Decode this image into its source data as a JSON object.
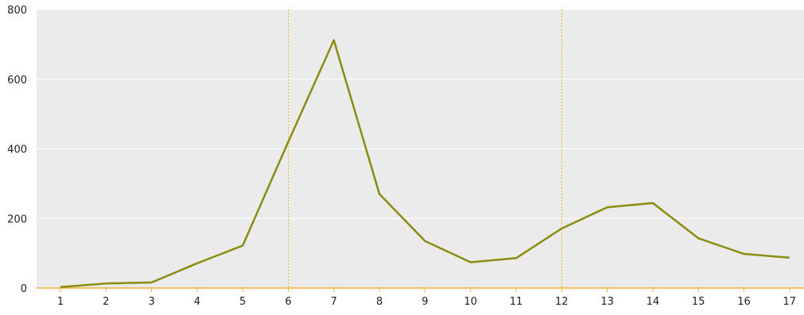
{
  "chart_data": {
    "type": "line",
    "title": "",
    "xlabel": "",
    "ylabel": "",
    "x": [
      1,
      2,
      3,
      4,
      5,
      6,
      7,
      8,
      9,
      10,
      11,
      12,
      13,
      14,
      15,
      16,
      17
    ],
    "series": [
      {
        "values": [
          3,
          13,
          16,
          71,
          122,
          420,
          712,
          270,
          135,
          74,
          86,
          171,
          232,
          244,
          143,
          98,
          87
        ]
      }
    ],
    "ylim": [
      0,
      800
    ],
    "yticks": [
      0,
      200,
      400,
      600,
      800
    ],
    "reference_lines_x": [
      6,
      12
    ],
    "grid": true,
    "legend": "none",
    "colors": {
      "line": "#8a8c0e",
      "plot_background": "#ebebeb",
      "grid": "#ffffff",
      "reference_line": "#f0b030",
      "x_axis": "#f0b030"
    }
  }
}
